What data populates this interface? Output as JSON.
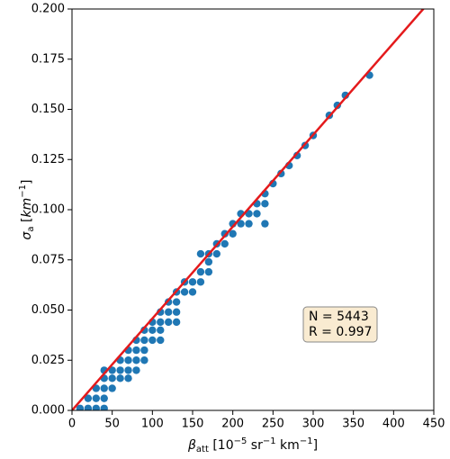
{
  "chart_data": {
    "type": "scatter",
    "xlabel": [
      "β",
      "att",
      " [10",
      "−5",
      " sr",
      "−1",
      " km",
      "−1",
      "]"
    ],
    "ylabel": [
      "σ",
      "a",
      " [",
      "km",
      "−1",
      "]"
    ],
    "xlim": [
      0,
      450
    ],
    "ylim": [
      0,
      0.2
    ],
    "xticks": [
      0,
      50,
      100,
      150,
      200,
      250,
      300,
      350,
      400,
      450
    ],
    "yticks": [
      {
        "value": 0,
        "label": "0.000"
      },
      {
        "value": 0.025,
        "label": "0.025"
      },
      {
        "value": 0.05,
        "label": "0.050"
      },
      {
        "value": 0.075,
        "label": "0.075"
      },
      {
        "value": 0.1,
        "label": "0.100"
      },
      {
        "value": 0.125,
        "label": "0.125"
      },
      {
        "value": 0.15,
        "label": "0.150"
      },
      {
        "value": 0.175,
        "label": "0.175"
      },
      {
        "value": 0.2,
        "label": "0.200"
      }
    ],
    "series": [
      {
        "color": "#1f77b4",
        "x": [
          10,
          20,
          20,
          30,
          30,
          30,
          40,
          40,
          40,
          40,
          40,
          50,
          50,
          50,
          60,
          60,
          60,
          70,
          70,
          70,
          70,
          80,
          80,
          80,
          80,
          90,
          90,
          90,
          90,
          100,
          100,
          100,
          110,
          110,
          110,
          110,
          120,
          120,
          120,
          130,
          130,
          130,
          130,
          140,
          140,
          150,
          150,
          160,
          160,
          160,
          170,
          170,
          170,
          180,
          180,
          190,
          190,
          200,
          200,
          210,
          210,
          220,
          220,
          230,
          230,
          240,
          240,
          240,
          250,
          260,
          270,
          280,
          290,
          300,
          320,
          330,
          340,
          370
        ],
        "values": [
          0.001,
          0.001,
          0.006,
          0.001,
          0.006,
          0.011,
          0.001,
          0.006,
          0.011,
          0.016,
          0.02,
          0.011,
          0.016,
          0.02,
          0.016,
          0.02,
          0.025,
          0.016,
          0.02,
          0.025,
          0.03,
          0.02,
          0.025,
          0.03,
          0.035,
          0.025,
          0.03,
          0.035,
          0.04,
          0.035,
          0.04,
          0.044,
          0.035,
          0.04,
          0.044,
          0.049,
          0.044,
          0.049,
          0.054,
          0.044,
          0.049,
          0.054,
          0.059,
          0.059,
          0.064,
          0.059,
          0.064,
          0.064,
          0.069,
          0.078,
          0.069,
          0.074,
          0.078,
          0.078,
          0.083,
          0.083,
          0.088,
          0.088,
          0.093,
          0.093,
          0.098,
          0.093,
          0.098,
          0.098,
          0.103,
          0.093,
          0.103,
          0.108,
          0.113,
          0.118,
          0.122,
          0.127,
          0.132,
          0.137,
          0.147,
          0.152,
          0.157,
          0.167
        ]
      }
    ],
    "fit": {
      "color": "#e41a1c",
      "x": [
        0,
        450
      ],
      "values": [
        0,
        0.206
      ]
    },
    "annotation": [
      "N = 5443",
      "R = 0.997"
    ]
  }
}
